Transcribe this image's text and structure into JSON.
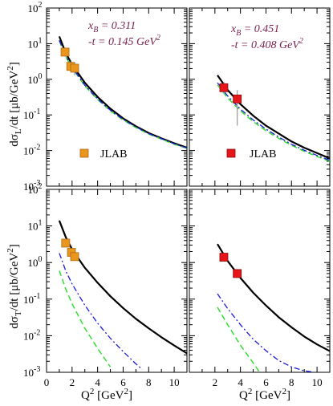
{
  "figure": {
    "ylabel_top_pre": "dσ",
    "ylabel_top_sub": "L",
    "ylabel_top_post": "/dt [μb/GeV",
    "ylabel_top_sup": "2",
    "ylabel_top_end": "]",
    "ylabel_bottom_pre": "dσ",
    "ylabel_bottom_sub": "T",
    "ylabel_bottom_post": "/dt [μb/GeV",
    "ylabel_bottom_sup": "2",
    "ylabel_bottom_end": "]",
    "xlabel_pre": "Q",
    "xlabel_sup": "2",
    "xlabel_post": " [GeV",
    "xlabel_sup2": "2",
    "xlabel_end": "]",
    "ytick_labels": [
      "10",
      "10",
      "10",
      "10",
      "10",
      "10"
    ],
    "ytick_exponents": [
      "2",
      "1",
      "0",
      "-1",
      "-2",
      "-3"
    ],
    "xtick_labels_left": [
      "0",
      "2",
      "4",
      "6",
      "8",
      "10"
    ],
    "xtick_labels_right": [
      "2",
      "4",
      "6",
      "8",
      "10"
    ],
    "annot_left_line1": "x",
    "annot_left_line1_sub": "B",
    "annot_left_line1_val": " = 0.311",
    "annot_left_line2": "-t = 0.145 GeV",
    "annot_left_line2_sup": "2",
    "annot_right_line1": "x",
    "annot_right_line1_sub": "B",
    "annot_right_line1_val": " = 0.451",
    "annot_right_line2": "-t = 0.408 GeV",
    "annot_right_line2_sup": "2",
    "legend_left": "JLAB",
    "legend_right": "JLAB"
  },
  "colors": {
    "orange": "#e8961e",
    "red": "#e8151b",
    "annot": "#7a1f4f",
    "green": "#33dd33",
    "blue": "#1c1cd8",
    "black": "#000000"
  },
  "chart_data": [
    {
      "type": "line",
      "panel": "top-left",
      "xlim": [
        0,
        11
      ],
      "ylim_log10": [
        -3,
        2
      ],
      "log_y": true,
      "curves": [
        {
          "style": "solid",
          "color": "black",
          "x": [
            1,
            1.5,
            2,
            3,
            4,
            5,
            6,
            7,
            8,
            9,
            10,
            11
          ],
          "y": [
            16,
            5.5,
            2.6,
            0.8,
            0.32,
            0.15,
            0.08,
            0.048,
            0.031,
            0.022,
            0.016,
            0.012
          ]
        },
        {
          "style": "dashed",
          "color": "green",
          "x": [
            1,
            1.5,
            2,
            3,
            4,
            5,
            6,
            7,
            8,
            9,
            10,
            11
          ],
          "y": [
            12,
            4.3,
            2.1,
            0.65,
            0.27,
            0.13,
            0.072,
            0.044,
            0.029,
            0.021,
            0.015,
            0.0115
          ]
        },
        {
          "style": "dashdot",
          "color": "blue",
          "x": [
            1,
            1.5,
            2,
            3,
            4,
            5,
            6,
            7,
            8,
            9,
            10,
            11
          ],
          "y": [
            12.5,
            4.5,
            2.2,
            0.68,
            0.28,
            0.135,
            0.075,
            0.046,
            0.03,
            0.0215,
            0.0155,
            0.0118
          ]
        }
      ],
      "points": [
        {
          "x": 1.45,
          "y": 5.8,
          "err": [
            4.8,
            7.0
          ]
        },
        {
          "x": 1.9,
          "y": 2.3,
          "err": [
            1.6,
            3.2
          ]
        },
        {
          "x": 2.2,
          "y": 2.05,
          "err": [
            1.3,
            2.9
          ]
        }
      ],
      "marker_color": "orange"
    },
    {
      "type": "line",
      "panel": "top-right",
      "xlim": [
        0,
        11
      ],
      "ylim_log10": [
        -3,
        2
      ],
      "log_y": true,
      "curves": [
        {
          "style": "solid",
          "color": "black",
          "x": [
            2.2,
            3,
            4,
            5,
            6,
            7,
            8,
            9,
            10,
            11
          ],
          "y": [
            1.3,
            0.5,
            0.2,
            0.095,
            0.05,
            0.03,
            0.018,
            0.012,
            0.0085,
            0.006
          ]
        },
        {
          "style": "dashed",
          "color": "green",
          "x": [
            2.2,
            3,
            4,
            5,
            6,
            7,
            8,
            9,
            10,
            11
          ],
          "y": [
            0.7,
            0.3,
            0.13,
            0.065,
            0.036,
            0.022,
            0.014,
            0.0095,
            0.0068,
            0.005
          ]
        },
        {
          "style": "dashdot",
          "color": "blue",
          "x": [
            2.2,
            3,
            4,
            5,
            6,
            7,
            8,
            9,
            10,
            11
          ],
          "y": [
            0.8,
            0.34,
            0.145,
            0.072,
            0.04,
            0.024,
            0.015,
            0.0102,
            0.0073,
            0.0053
          ]
        }
      ],
      "points": [
        {
          "x": 2.7,
          "y": 0.58,
          "err": [
            0.4,
            0.85
          ]
        },
        {
          "x": 3.75,
          "y": 0.28,
          "err": [
            0.05,
            0.5
          ]
        }
      ],
      "marker_color": "red"
    },
    {
      "type": "line",
      "panel": "bottom-left",
      "xlim": [
        0,
        11
      ],
      "ylim_log10": [
        -3,
        2
      ],
      "log_y": true,
      "curves": [
        {
          "style": "solid",
          "color": "black",
          "x": [
            1,
            1.5,
            2,
            3,
            4,
            5,
            6,
            7,
            8,
            9,
            10,
            11
          ],
          "y": [
            14,
            5,
            2.3,
            0.72,
            0.28,
            0.12,
            0.057,
            0.029,
            0.016,
            0.0091,
            0.0054,
            0.0033
          ]
        },
        {
          "style": "dashdot",
          "color": "blue",
          "x": [
            1,
            1.5,
            2,
            3,
            4,
            5,
            6,
            7,
            7.5
          ],
          "y": [
            1.8,
            0.6,
            0.26,
            0.068,
            0.022,
            0.0085,
            0.0037,
            0.0017,
            0.0012
          ]
        },
        {
          "style": "dashed",
          "color": "green",
          "x": [
            1,
            1.5,
            2,
            3,
            4,
            5
          ],
          "y": [
            0.6,
            0.19,
            0.075,
            0.016,
            0.0045,
            0.0014
          ]
        }
      ],
      "points": [
        {
          "x": 1.5,
          "y": 3.4,
          "err": [
            2.8,
            4.0
          ]
        },
        {
          "x": 1.95,
          "y": 1.9,
          "err": [
            1.5,
            2.4
          ]
        },
        {
          "x": 2.2,
          "y": 1.45,
          "err": [
            1.15,
            1.8
          ]
        }
      ],
      "marker_color": "orange"
    },
    {
      "type": "line",
      "panel": "bottom-right",
      "xlim": [
        0,
        11
      ],
      "ylim_log10": [
        -3,
        2
      ],
      "log_y": true,
      "curves": [
        {
          "style": "solid",
          "color": "black",
          "x": [
            2.2,
            3,
            4,
            5,
            6,
            7,
            8,
            9,
            10,
            11
          ],
          "y": [
            3.2,
            1.1,
            0.38,
            0.15,
            0.067,
            0.032,
            0.017,
            0.0095,
            0.0058,
            0.0038
          ]
        },
        {
          "style": "dashdot",
          "color": "blue",
          "x": [
            2.2,
            3,
            4,
            5,
            6,
            7,
            8,
            9,
            9.8
          ],
          "y": [
            0.14,
            0.055,
            0.02,
            0.008,
            0.0039,
            0.0021,
            0.0014,
            0.0011,
            0.001
          ]
        },
        {
          "style": "dashed",
          "color": "green",
          "x": [
            2.2,
            3,
            4,
            5,
            5.5
          ],
          "y": [
            0.06,
            0.02,
            0.0055,
            0.0018,
            0.001
          ]
        }
      ],
      "points": [
        {
          "x": 2.7,
          "y": 1.4,
          "err": [
            1.1,
            1.8
          ]
        },
        {
          "x": 3.75,
          "y": 0.5,
          "err": [
            0.4,
            0.62
          ]
        }
      ],
      "marker_color": "red"
    }
  ]
}
